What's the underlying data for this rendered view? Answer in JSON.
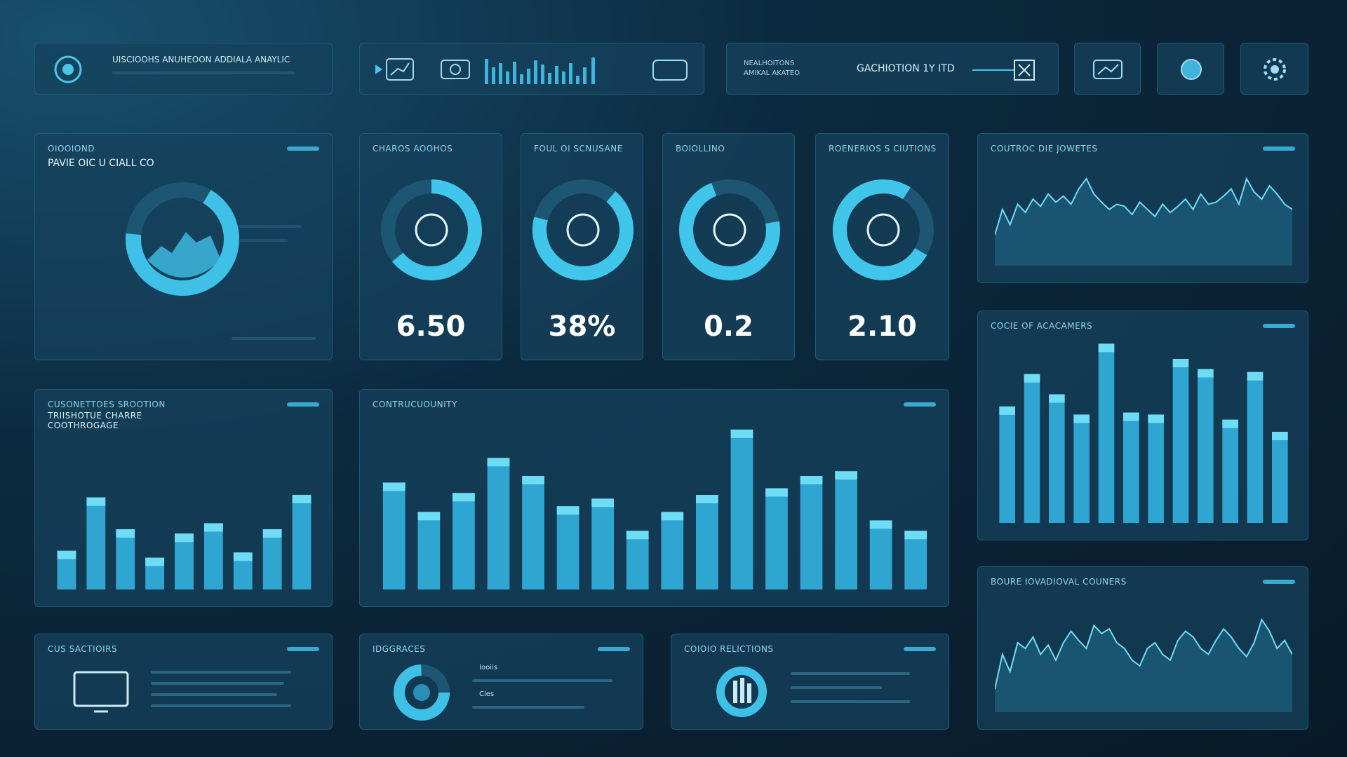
{
  "header": {
    "title": "UISCIOOHS ANUHEOON ADDIALA ANAYLIC",
    "status": [
      "NEALHOITONS",
      "AMIKAL AKATEO"
    ],
    "label": "GACHIOTION 1Y ITD"
  },
  "overview": {
    "title": "OIOOIOND",
    "subtitle": "PAVIE OIC U CIALL CO"
  },
  "kpis": [
    {
      "title": "CHAROS AOOHOS",
      "value": "6.50"
    },
    {
      "title": "FOUL OI SCNUSANE",
      "value": "38%"
    },
    {
      "title": "BOIOLLINO",
      "value": "0.2"
    },
    {
      "title": "ROENERIOS S CIUTIONS",
      "value": "2.10"
    }
  ],
  "charts": [
    {
      "type": "line",
      "title": "COUTROC DIE JOWETES",
      "ylim": [
        0,
        100
      ],
      "values": [
        30,
        55,
        40,
        60,
        52,
        65,
        58,
        70,
        62,
        68,
        60,
        75,
        85,
        70,
        62,
        55,
        60,
        58,
        50,
        62,
        55,
        48,
        60,
        52,
        58,
        65,
        55,
        70,
        60,
        62,
        68,
        75,
        60,
        85,
        72,
        65,
        78,
        70,
        60,
        55
      ]
    },
    {
      "type": "bar",
      "title": "COCIE OF ACACAMERS",
      "ylim": [
        0,
        180
      ],
      "values": [
        115,
        147,
        127,
        107,
        177,
        109,
        107,
        162,
        152,
        102,
        149,
        90
      ]
    },
    {
      "type": "line",
      "title": "BOURE IOVADIOVAL COUNERS",
      "ylim": [
        0,
        100
      ],
      "values": [
        20,
        50,
        35,
        60,
        55,
        65,
        50,
        58,
        45,
        60,
        70,
        62,
        55,
        75,
        68,
        72,
        60,
        55,
        45,
        40,
        55,
        60,
        50,
        45,
        62,
        70,
        65,
        55,
        50,
        62,
        72,
        65,
        55,
        48,
        60,
        80,
        70,
        55,
        62,
        50
      ]
    },
    {
      "type": "bar",
      "title": "CUSONETTOES SROOTION",
      "subtitle": [
        "TRIISHOTUE CHARRE",
        "COOTHROGAGE"
      ],
      "ylim": [
        0,
        180
      ],
      "values": [
        45,
        107,
        70,
        37,
        65,
        77,
        43,
        70,
        110
      ]
    },
    {
      "type": "bar",
      "title": "CONTRUCUOUNITY",
      "ylim": [
        0,
        180
      ],
      "values": [
        113,
        82,
        102,
        139,
        120,
        88,
        96,
        62,
        82,
        100,
        169,
        107,
        120,
        125,
        73,
        62
      ]
    }
  ],
  "lists": [
    {
      "title": "CUS SACTIOIRS"
    },
    {
      "title": "IDGGRACES",
      "items": [
        "Iooiis",
        "Cies"
      ]
    },
    {
      "title": "COIOIO RELICTIONS"
    }
  ]
}
